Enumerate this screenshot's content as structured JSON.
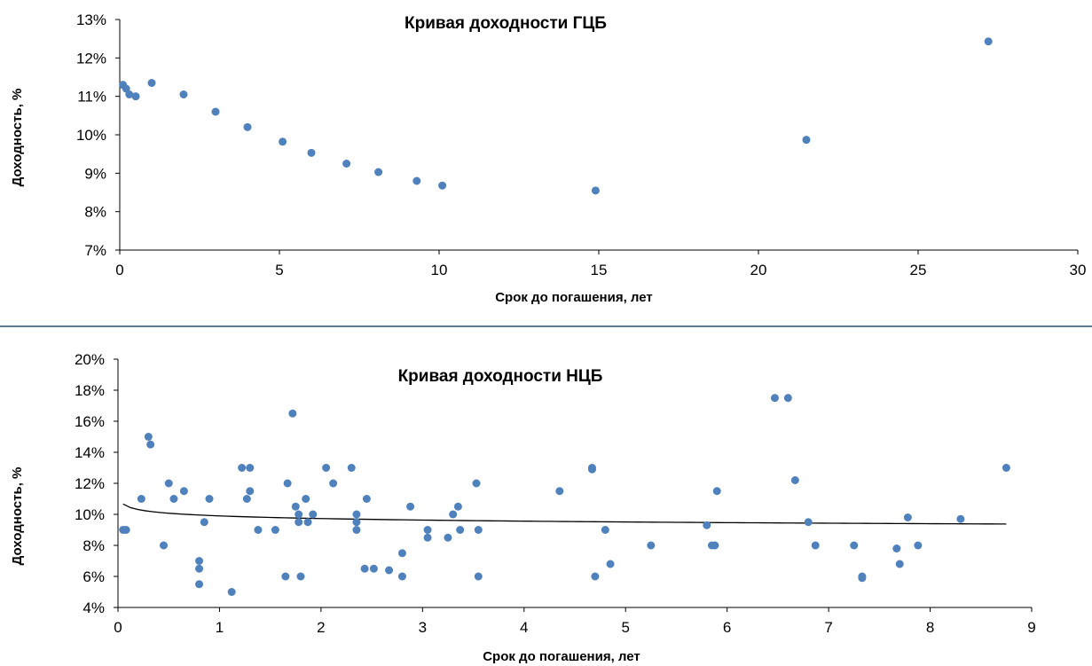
{
  "chart_data": [
    {
      "type": "scatter",
      "title": "Кривая доходности  ГЦБ",
      "xlabel": "Срок до погашения, лет",
      "ylabel": "Доходность, %",
      "xlim": [
        0,
        30
      ],
      "ylim": [
        7,
        13
      ],
      "xticks": [
        0,
        5,
        10,
        15,
        20,
        25,
        30
      ],
      "xtick_labels": [
        "0",
        "5",
        "10",
        "15",
        "20",
        "25",
        "30"
      ],
      "yticks": [
        7,
        8,
        9,
        10,
        11,
        12,
        13
      ],
      "ytick_labels": [
        "7%",
        "8%",
        "9%",
        "10%",
        "11%",
        "12%",
        "13%"
      ],
      "grid": false,
      "marker_color": "#4f81bd",
      "series": [
        {
          "points": [
            [
              0.1,
              11.3
            ],
            [
              0.2,
              11.2
            ],
            [
              0.3,
              11.05
            ],
            [
              0.5,
              11.0
            ],
            [
              1.0,
              11.35
            ],
            [
              2.0,
              11.05
            ],
            [
              3.0,
              10.6
            ],
            [
              4.0,
              10.2
            ],
            [
              5.1,
              9.82
            ],
            [
              6.0,
              9.53
            ],
            [
              7.1,
              9.25
            ],
            [
              8.1,
              9.03
            ],
            [
              9.3,
              8.8
            ],
            [
              10.1,
              8.68
            ],
            [
              14.9,
              8.55
            ],
            [
              21.5,
              9.87
            ],
            [
              27.2,
              12.43
            ]
          ]
        }
      ]
    },
    {
      "type": "scatter",
      "title": "Кривая доходности  НЦБ",
      "xlabel": "Срок до погашения, лет",
      "ylabel": "Доходность, %",
      "xlim": [
        0,
        9
      ],
      "ylim": [
        4,
        20
      ],
      "xticks": [
        0,
        1,
        2,
        3,
        4,
        5,
        6,
        7,
        8,
        9
      ],
      "xtick_labels": [
        "0",
        "1",
        "2",
        "3",
        "4",
        "5",
        "6",
        "7",
        "8",
        "9"
      ],
      "yticks": [
        4,
        6,
        8,
        10,
        12,
        14,
        16,
        18,
        20
      ],
      "ytick_labels": [
        "4%",
        "6%",
        "8%",
        "10%",
        "12%",
        "14%",
        "16%",
        "18%",
        "20%"
      ],
      "grid": false,
      "marker_color": "#4f81bd",
      "trendline": {
        "type": "power",
        "a": 9.9,
        "b": -0.025,
        "x_range": [
          0.05,
          8.75
        ],
        "color": "#000000"
      },
      "series": [
        {
          "points": [
            [
              0.05,
              9.0
            ],
            [
              0.08,
              9.0
            ],
            [
              0.23,
              11.0
            ],
            [
              0.3,
              15.0
            ],
            [
              0.32,
              14.5
            ],
            [
              0.45,
              8.0
            ],
            [
              0.5,
              12.0
            ],
            [
              0.55,
              11.0
            ],
            [
              0.65,
              11.5
            ],
            [
              0.8,
              7.0
            ],
            [
              0.8,
              6.5
            ],
            [
              0.8,
              5.5
            ],
            [
              0.85,
              9.5
            ],
            [
              0.9,
              11.0
            ],
            [
              1.12,
              5.0
            ],
            [
              1.22,
              13.0
            ],
            [
              1.27,
              11.0
            ],
            [
              1.3,
              11.5
            ],
            [
              1.3,
              13.0
            ],
            [
              1.38,
              9.0
            ],
            [
              1.55,
              9.0
            ],
            [
              1.65,
              6.0
            ],
            [
              1.67,
              12.0
            ],
            [
              1.72,
              16.5
            ],
            [
              1.75,
              10.5
            ],
            [
              1.78,
              10.0
            ],
            [
              1.78,
              9.5
            ],
            [
              1.8,
              6.0
            ],
            [
              1.85,
              11.0
            ],
            [
              1.87,
              9.5
            ],
            [
              1.92,
              10.0
            ],
            [
              2.05,
              13.0
            ],
            [
              2.12,
              12.0
            ],
            [
              2.3,
              13.0
            ],
            [
              2.35,
              10.0
            ],
            [
              2.35,
              9.5
            ],
            [
              2.35,
              9.0
            ],
            [
              2.43,
              6.5
            ],
            [
              2.45,
              11.0
            ],
            [
              2.52,
              6.5
            ],
            [
              2.67,
              6.4
            ],
            [
              2.8,
              6.0
            ],
            [
              2.8,
              7.5
            ],
            [
              2.88,
              10.5
            ],
            [
              3.05,
              9.0
            ],
            [
              3.05,
              8.5
            ],
            [
              3.25,
              8.5
            ],
            [
              3.3,
              10.0
            ],
            [
              3.35,
              10.5
            ],
            [
              3.37,
              9.0
            ],
            [
              3.53,
              12.0
            ],
            [
              3.55,
              9.0
            ],
            [
              3.55,
              6.0
            ],
            [
              4.35,
              11.5
            ],
            [
              4.67,
              13.0
            ],
            [
              4.67,
              12.9
            ],
            [
              4.7,
              6.0
            ],
            [
              4.8,
              9.0
            ],
            [
              4.85,
              6.8
            ],
            [
              5.25,
              8.0
            ],
            [
              5.8,
              9.3
            ],
            [
              5.85,
              8.0
            ],
            [
              5.88,
              8.0
            ],
            [
              5.9,
              11.5
            ],
            [
              6.47,
              17.5
            ],
            [
              6.6,
              17.5
            ],
            [
              6.67,
              12.2
            ],
            [
              6.8,
              9.5
            ],
            [
              6.87,
              8.0
            ],
            [
              7.25,
              8.0
            ],
            [
              7.33,
              6.0
            ],
            [
              7.33,
              5.9
            ],
            [
              7.67,
              7.8
            ],
            [
              7.7,
              6.8
            ],
            [
              7.78,
              9.8
            ],
            [
              7.88,
              8.0
            ],
            [
              8.3,
              9.7
            ],
            [
              8.75,
              13.0
            ]
          ]
        }
      ]
    }
  ]
}
